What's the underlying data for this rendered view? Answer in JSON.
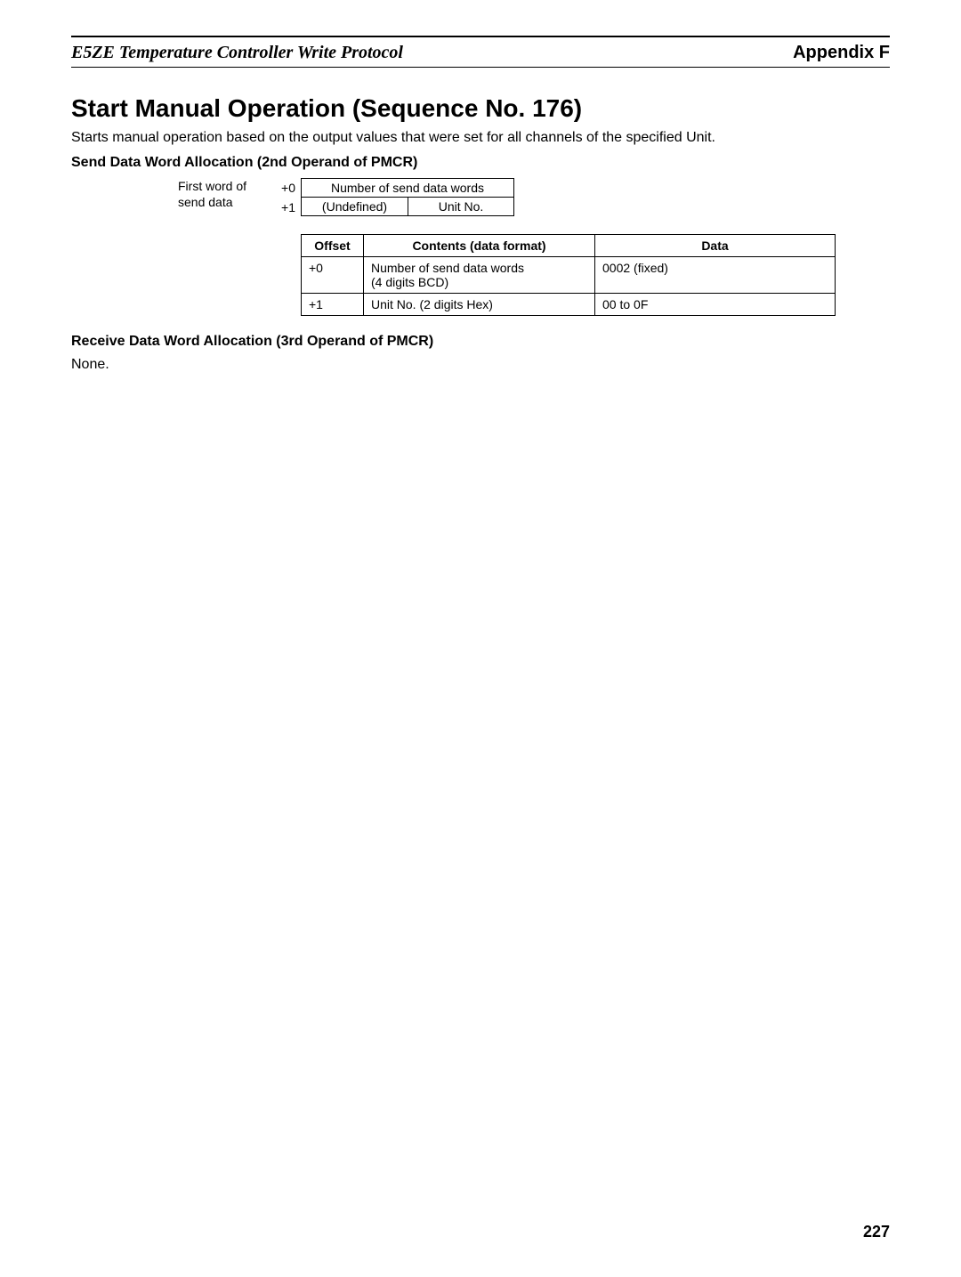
{
  "header": {
    "left": "E5ZE Temperature Controller Write Protocol",
    "right": "Appendix F"
  },
  "title": "Start Manual Operation (Sequence No. 176)",
  "description": "Starts manual operation based on the output values that were set for all channels of the specified Unit.",
  "send_section": {
    "heading": "Send Data Word Allocation (2nd Operand of PMCR)",
    "diagram_label_line1": "First word of",
    "diagram_label_line2": "send data",
    "diagram": {
      "row0_offset": "+0",
      "row0_content": "Number of send data words",
      "row1_offset": "+1",
      "row1_left": "(Undefined)",
      "row1_right": "Unit No."
    },
    "table": {
      "headers": {
        "offset": "Offset",
        "contents": "Contents (data format)",
        "data": "Data"
      },
      "rows": [
        {
          "offset": "+0",
          "contents": "Number of send data words\n(4 digits BCD)",
          "data": "0002 (fixed)"
        },
        {
          "offset": "+1",
          "contents": "Unit No. (2 digits Hex)",
          "data": "00 to 0F"
        }
      ]
    }
  },
  "receive_section": {
    "heading": "Receive Data Word Allocation (3rd Operand of PMCR)",
    "content": "None."
  },
  "page_number": "227"
}
